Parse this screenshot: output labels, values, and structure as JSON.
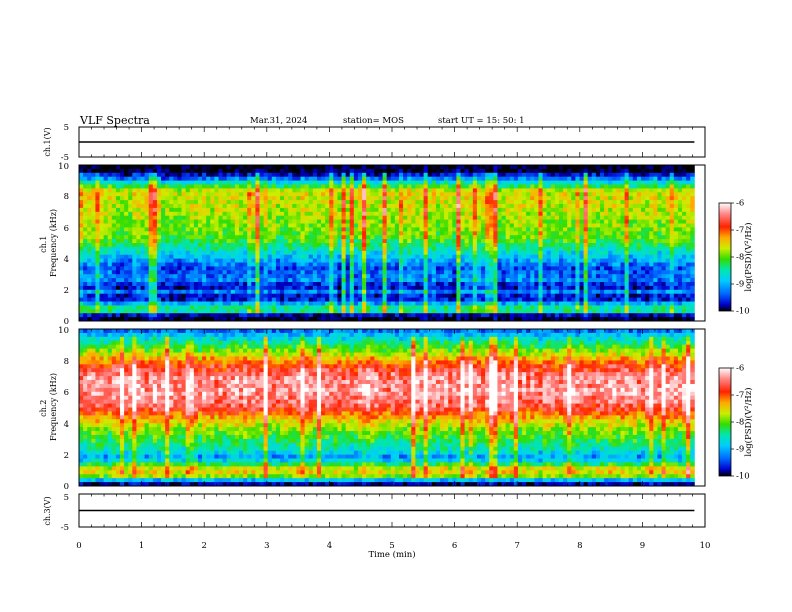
{
  "header": {
    "title": "VLF Spectra",
    "date": "Mar.31, 2024",
    "station": "station= MOS",
    "start": "start  UT =   15: 50: 1"
  },
  "chart_data": [
    {
      "type": "line",
      "panel": "channel-1-waveform",
      "ylabel": "ch.1(V)",
      "ylim": [
        -5,
        5
      ],
      "yticks": [
        "5",
        "-5"
      ],
      "xlim": [
        0,
        10
      ],
      "x": [
        0,
        9.83
      ],
      "y": [
        0,
        0
      ]
    },
    {
      "type": "heatmap",
      "panel": "channel-1-spectrogram",
      "ylabel": "ch.1\nFrequency (kHz)",
      "ylim": [
        0,
        10
      ],
      "yticks": [
        "0",
        "2",
        "4",
        "6",
        "8",
        "10"
      ],
      "xlim": [
        0,
        10
      ],
      "data_end_min": 9.83,
      "colorbar": {
        "label": "log(PSD)(V²/Hz)",
        "range": [
          -10,
          -6
        ],
        "ticks": [
          "-6",
          "-7",
          "-8",
          "-9",
          "-10"
        ]
      },
      "profile": [
        {
          "f": 0.0,
          "v": -9.9
        },
        {
          "f": 0.3,
          "v": -10.0
        },
        {
          "f": 0.7,
          "v": -8.0
        },
        {
          "f": 1.0,
          "v": -8.6
        },
        {
          "f": 1.5,
          "v": -9.8
        },
        {
          "f": 1.9,
          "v": -9.0
        },
        {
          "f": 2.2,
          "v": -9.7
        },
        {
          "f": 2.6,
          "v": -9.1
        },
        {
          "f": 3.4,
          "v": -9.3
        },
        {
          "f": 4.4,
          "v": -8.6
        },
        {
          "f": 5.2,
          "v": -8.0
        },
        {
          "f": 6.2,
          "v": -7.8
        },
        {
          "f": 7.4,
          "v": -7.6
        },
        {
          "f": 8.3,
          "v": -7.5
        },
        {
          "f": 8.8,
          "v": -8.4
        },
        {
          "f": 9.2,
          "v": -9.3
        },
        {
          "f": 9.6,
          "v": -9.9
        },
        {
          "f": 10.0,
          "v": -10.0
        }
      ]
    },
    {
      "type": "heatmap",
      "panel": "channel-2-spectrogram",
      "ylabel": "ch.2\nFrequency (kHz)",
      "ylim": [
        0,
        10
      ],
      "yticks": [
        "0",
        "2",
        "4",
        "6",
        "8",
        "10"
      ],
      "xlim": [
        0,
        10
      ],
      "data_end_min": 9.83,
      "colorbar": {
        "label": "log(PSD)(V²/Hz)",
        "range": [
          -10,
          -6
        ],
        "ticks": [
          "-6",
          "-7",
          "-8",
          "-9",
          "-10"
        ]
      },
      "profile": [
        {
          "f": 0.0,
          "v": -9.9
        },
        {
          "f": 0.2,
          "v": -9.6
        },
        {
          "f": 0.6,
          "v": -7.9
        },
        {
          "f": 1.0,
          "v": -7.3
        },
        {
          "f": 1.4,
          "v": -8.2
        },
        {
          "f": 1.8,
          "v": -9.0
        },
        {
          "f": 2.2,
          "v": -8.6
        },
        {
          "f": 2.8,
          "v": -8.2
        },
        {
          "f": 3.6,
          "v": -7.8
        },
        {
          "f": 4.4,
          "v": -7.2
        },
        {
          "f": 5.0,
          "v": -6.6
        },
        {
          "f": 6.0,
          "v": -6.3
        },
        {
          "f": 7.0,
          "v": -6.4
        },
        {
          "f": 7.8,
          "v": -6.9
        },
        {
          "f": 8.4,
          "v": -7.6
        },
        {
          "f": 9.0,
          "v": -8.2
        },
        {
          "f": 9.6,
          "v": -8.8
        },
        {
          "f": 10.0,
          "v": -9.3
        }
      ]
    },
    {
      "type": "line",
      "panel": "channel-3-waveform",
      "ylabel": "ch.3(V)",
      "ylim": [
        -5,
        5
      ],
      "yticks": [
        "5",
        "-5"
      ],
      "xlim": [
        0,
        10
      ],
      "xlabel": "Time  (min)",
      "xticks": [
        "0",
        "1",
        "2",
        "3",
        "4",
        "5",
        "6",
        "7",
        "8",
        "9",
        "10"
      ],
      "x": [
        0,
        9.83
      ],
      "y": [
        0,
        0
      ]
    }
  ],
  "colors": {
    "colormap": [
      "#000000",
      "#0000cc",
      "#0066ff",
      "#00ccff",
      "#00e6b0",
      "#33dd00",
      "#ccee00",
      "#ffaa00",
      "#ff2200",
      "#ff8888",
      "#ffffff"
    ]
  }
}
